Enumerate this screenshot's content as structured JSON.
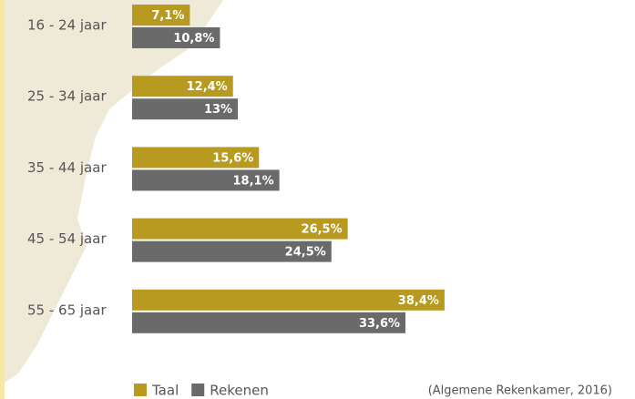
{
  "chart_data": {
    "type": "barh",
    "categories": [
      "16 - 24 jaar",
      "25 - 34 jaar",
      "35 - 44 jaar",
      "45 - 54 jaar",
      "55 - 65 jaar"
    ],
    "series": [
      {
        "name": "Taal",
        "color": "#b79a1f",
        "values": [
          7.1,
          12.4,
          15.6,
          26.5,
          38.4
        ],
        "value_labels": [
          "7,1%",
          "12,4%",
          "15,6%",
          "26,5%",
          "38,4%"
        ]
      },
      {
        "name": "Rekenen",
        "color": "#6a6a6a",
        "values": [
          10.8,
          13,
          18.1,
          24.5,
          33.6
        ],
        "value_labels": [
          "10,8%",
          "13%",
          "18,1%",
          "24,5%",
          "33,6%"
        ]
      }
    ],
    "source": "(Algemene Rekenkamer, 2016)"
  }
}
